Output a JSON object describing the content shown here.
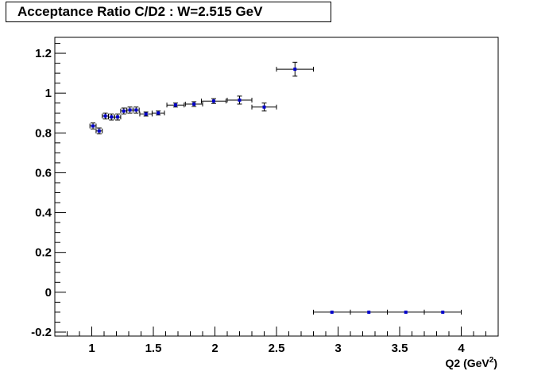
{
  "chart_data": {
    "type": "scatter",
    "title": "Acceptance Ratio C/D2 : W=2.515 GeV",
    "xlabel": "Q2 (GeV",
    "xlabel_sup": "2",
    "xlabel_close": ")",
    "ylabel": "",
    "xlim": [
      0.7,
      4.3
    ],
    "ylim": [
      -0.22,
      1.28
    ],
    "grid": false,
    "legend": "none",
    "x_ticks": [
      1,
      1.5,
      2,
      2.5,
      3,
      3.5,
      4
    ],
    "x_tick_labels": [
      "1",
      "1.5",
      "2",
      "2.5",
      "3",
      "3.5",
      "4"
    ],
    "y_ticks": [
      -0.2,
      0,
      0.2,
      0.4,
      0.6,
      0.8,
      1,
      1.2
    ],
    "y_tick_labels": [
      "-0.2",
      "0",
      "0.2",
      "0.4",
      "0.6",
      "0.8",
      "1",
      "1.2"
    ],
    "marker_color": "#0000cc",
    "points": [
      {
        "x": 1.01,
        "y": 0.835,
        "xerr": 0.025,
        "yerr": 0.015
      },
      {
        "x": 1.06,
        "y": 0.81,
        "xerr": 0.025,
        "yerr": 0.015
      },
      {
        "x": 1.11,
        "y": 0.885,
        "xerr": 0.025,
        "yerr": 0.015
      },
      {
        "x": 1.16,
        "y": 0.88,
        "xerr": 0.025,
        "yerr": 0.015
      },
      {
        "x": 1.21,
        "y": 0.88,
        "xerr": 0.025,
        "yerr": 0.015
      },
      {
        "x": 1.26,
        "y": 0.91,
        "xerr": 0.025,
        "yerr": 0.015
      },
      {
        "x": 1.31,
        "y": 0.915,
        "xerr": 0.025,
        "yerr": 0.015
      },
      {
        "x": 1.36,
        "y": 0.915,
        "xerr": 0.025,
        "yerr": 0.015
      },
      {
        "x": 1.44,
        "y": 0.895,
        "xerr": 0.05,
        "yerr": 0.01
      },
      {
        "x": 1.54,
        "y": 0.9,
        "xerr": 0.05,
        "yerr": 0.01
      },
      {
        "x": 1.68,
        "y": 0.94,
        "xerr": 0.07,
        "yerr": 0.01
      },
      {
        "x": 1.83,
        "y": 0.945,
        "xerr": 0.07,
        "yerr": 0.012
      },
      {
        "x": 1.99,
        "y": 0.96,
        "xerr": 0.1,
        "yerr": 0.012
      },
      {
        "x": 2.2,
        "y": 0.965,
        "xerr": 0.1,
        "yerr": 0.02
      },
      {
        "x": 2.4,
        "y": 0.93,
        "xerr": 0.1,
        "yerr": 0.02
      },
      {
        "x": 2.65,
        "y": 1.12,
        "xerr": 0.15,
        "yerr": 0.035
      },
      {
        "x": 2.95,
        "y": -0.1,
        "xerr": 0.15,
        "yerr": 0.0
      },
      {
        "x": 3.25,
        "y": -0.1,
        "xerr": 0.15,
        "yerr": 0.0
      },
      {
        "x": 3.55,
        "y": -0.1,
        "xerr": 0.15,
        "yerr": 0.0
      },
      {
        "x": 3.85,
        "y": -0.1,
        "xerr": 0.15,
        "yerr": 0.0
      }
    ]
  }
}
